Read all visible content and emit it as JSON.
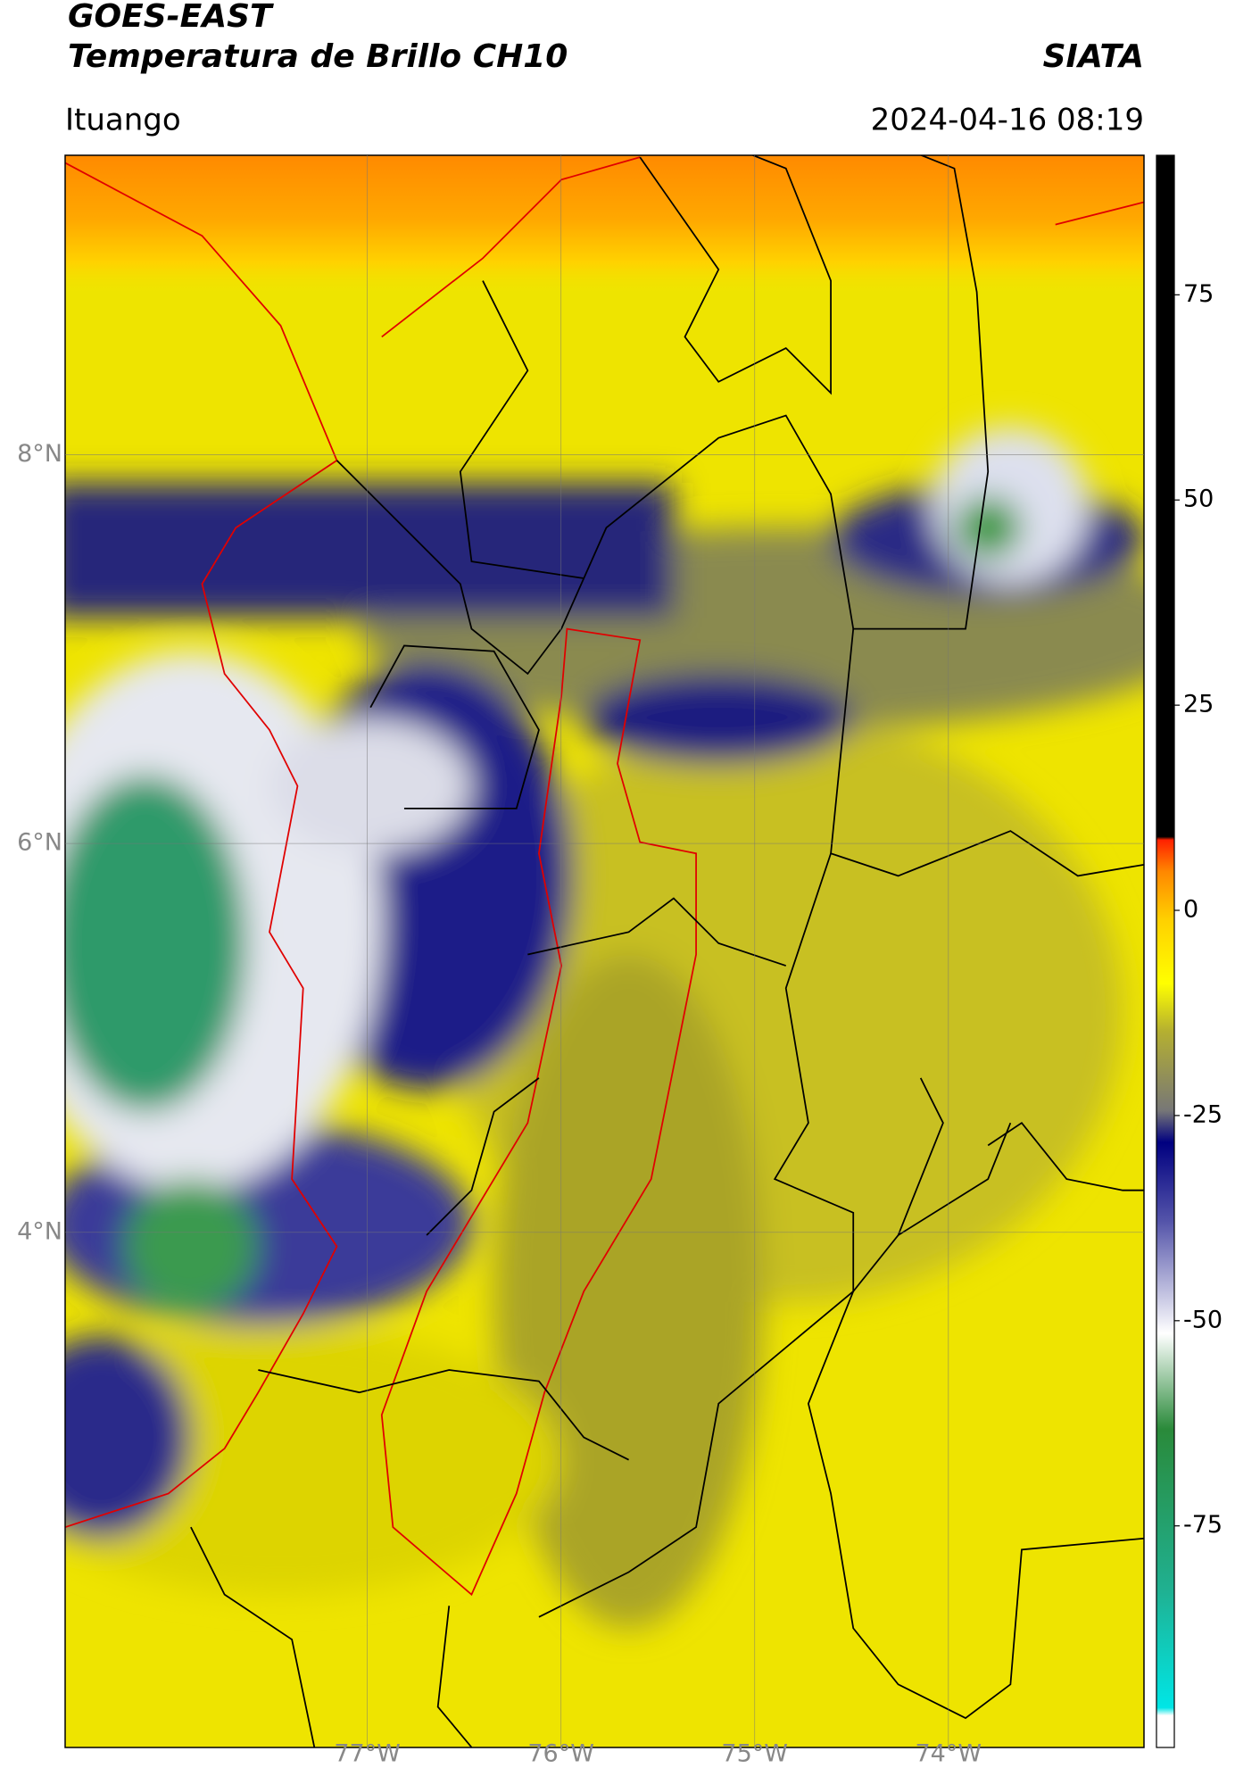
{
  "header": {
    "title": "GOES-EAST",
    "subtitle": "Temperatura de Brillo CH10",
    "brand": "SIATA",
    "location": "Ituango",
    "datetime": "2024-04-16 08:19"
  },
  "chart_data": {
    "type": "map",
    "xlim": [
      -78.56,
      -72.99
    ],
    "ylim": [
      1.35,
      9.54
    ],
    "xticks": [
      {
        "value": -77,
        "label": "77°W"
      },
      {
        "value": -76,
        "label": "76°W"
      },
      {
        "value": -75,
        "label": "75°W"
      },
      {
        "value": -74,
        "label": "74°W"
      }
    ],
    "yticks": [
      {
        "value": 4,
        "label": "4°N"
      },
      {
        "value": 6,
        "label": "6°N"
      },
      {
        "value": 8,
        "label": "8°N"
      }
    ],
    "grid": true,
    "colorbar": {
      "lim": [
        -102,
        92
      ],
      "ticks": [
        -75,
        -50,
        -25,
        0,
        25,
        50,
        75
      ]
    }
  }
}
